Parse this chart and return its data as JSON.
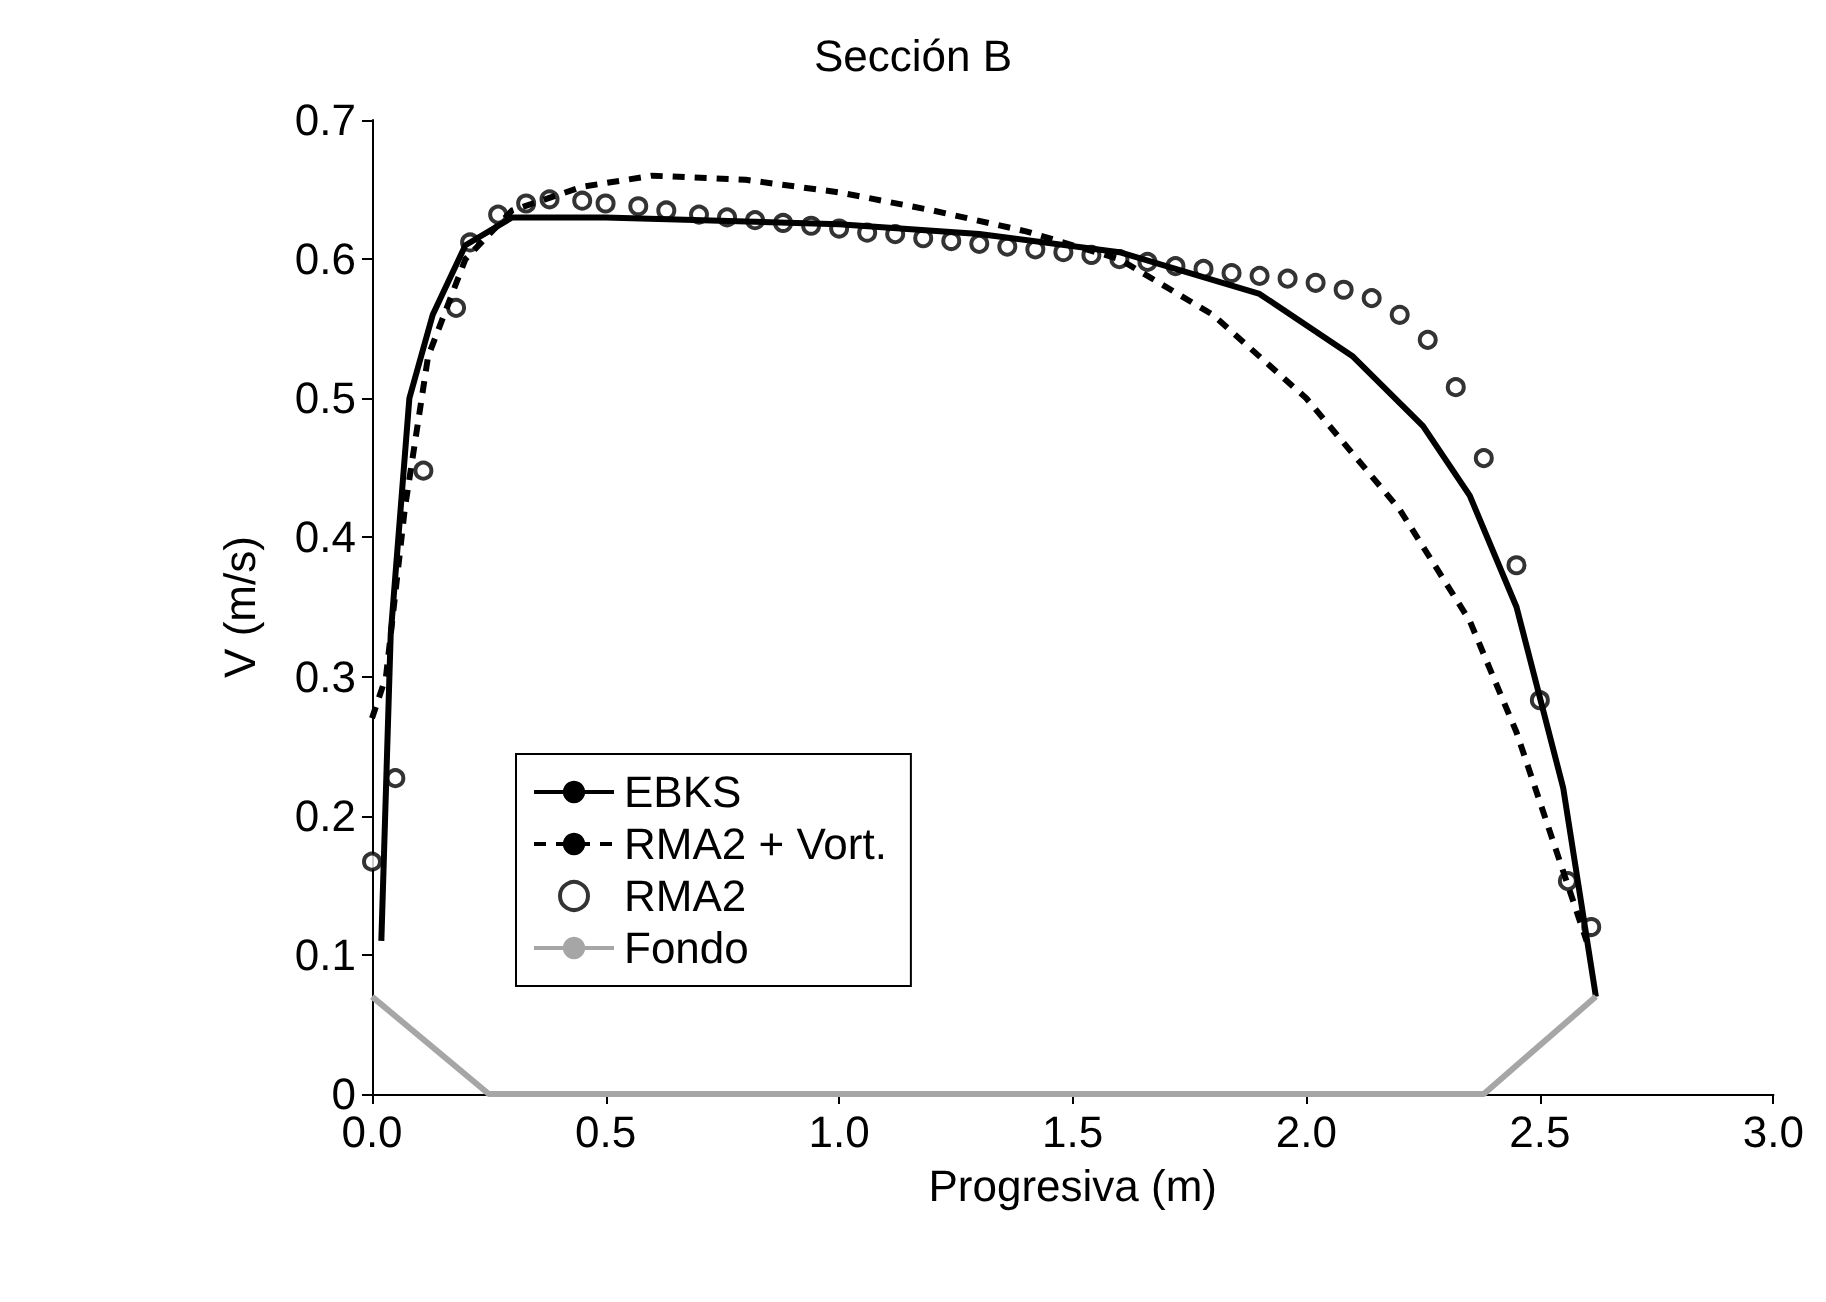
{
  "chart_data": {
    "type": "line",
    "title": "Sección B",
    "xlabel": "Progresiva (m)",
    "ylabel": "V (m/s)",
    "xlim": [
      0,
      3
    ],
    "xticks": [
      {
        "value": 0,
        "label": "0.0"
      },
      {
        "value": 0.5,
        "label": "0.5"
      },
      {
        "value": 1,
        "label": "1.0"
      },
      {
        "value": 1.5,
        "label": "1.5"
      },
      {
        "value": 2,
        "label": "2.0"
      },
      {
        "value": 2.5,
        "label": "2.5"
      },
      {
        "value": 3,
        "label": "3.0"
      }
    ],
    "ylim": [
      0,
      0.7
    ],
    "yticks": [
      0,
      0.1,
      0.2,
      0.3,
      0.4,
      0.5,
      0.6,
      0.7
    ],
    "grid": false,
    "legend": "bottom left",
    "series": [
      {
        "name": "EBKS",
        "color": "#000000",
        "line_style": "solid",
        "marker": "none",
        "x": [
          0.02,
          0.04,
          0.08,
          0.13,
          0.2,
          0.3,
          0.5,
          1.0,
          1.3,
          1.6,
          1.9,
          2.1,
          2.25,
          2.35,
          2.45,
          2.55,
          2.62
        ],
        "values": [
          0.11,
          0.33,
          0.5,
          0.56,
          0.61,
          0.63,
          0.63,
          0.625,
          0.618,
          0.605,
          0.575,
          0.53,
          0.48,
          0.43,
          0.35,
          0.22,
          0.07
        ]
      },
      {
        "name": "RMA2 + Vort.",
        "color": "#000000",
        "line_style": "dashed",
        "marker": "none",
        "x": [
          0.0,
          0.03,
          0.07,
          0.12,
          0.2,
          0.3,
          0.45,
          0.6,
          0.8,
          1.0,
          1.2,
          1.4,
          1.6,
          1.8,
          2.0,
          2.2,
          2.35,
          2.45,
          2.55,
          2.6
        ],
        "values": [
          0.27,
          0.3,
          0.42,
          0.53,
          0.6,
          0.635,
          0.652,
          0.66,
          0.657,
          0.648,
          0.635,
          0.62,
          0.6,
          0.56,
          0.5,
          0.42,
          0.34,
          0.26,
          0.16,
          0.11
        ]
      },
      {
        "name": "RMA2",
        "type": "scatter",
        "color": "#000000",
        "marker": "circle",
        "x": [
          0.0,
          0.05,
          0.11,
          0.18,
          0.21,
          0.27,
          0.33,
          0.38,
          0.45,
          0.5,
          0.57,
          0.63,
          0.7,
          0.76,
          0.82,
          0.88,
          0.94,
          1.0,
          1.06,
          1.12,
          1.18,
          1.24,
          1.3,
          1.36,
          1.42,
          1.48,
          1.54,
          1.6,
          1.66,
          1.72,
          1.78,
          1.84,
          1.9,
          1.96,
          2.02,
          2.08,
          2.14,
          2.2,
          2.26,
          2.32,
          2.38,
          2.45,
          2.5,
          2.56,
          2.61
        ],
        "values": [
          0.167,
          0.227,
          0.448,
          0.565,
          0.612,
          0.632,
          0.64,
          0.643,
          0.642,
          0.64,
          0.638,
          0.635,
          0.632,
          0.63,
          0.628,
          0.626,
          0.624,
          0.622,
          0.619,
          0.618,
          0.615,
          0.613,
          0.611,
          0.609,
          0.607,
          0.605,
          0.603,
          0.6,
          0.598,
          0.595,
          0.593,
          0.59,
          0.588,
          0.586,
          0.583,
          0.578,
          0.572,
          0.56,
          0.542,
          0.508,
          0.457,
          0.38,
          0.283,
          0.153,
          0.12
        ]
      },
      {
        "name": "Fondo",
        "color": "#a6a6a6",
        "line_style": "solid",
        "marker": "none",
        "x": [
          0,
          0.25,
          2.38,
          2.62
        ],
        "values": [
          0.07,
          0,
          0,
          0.07
        ]
      }
    ]
  }
}
